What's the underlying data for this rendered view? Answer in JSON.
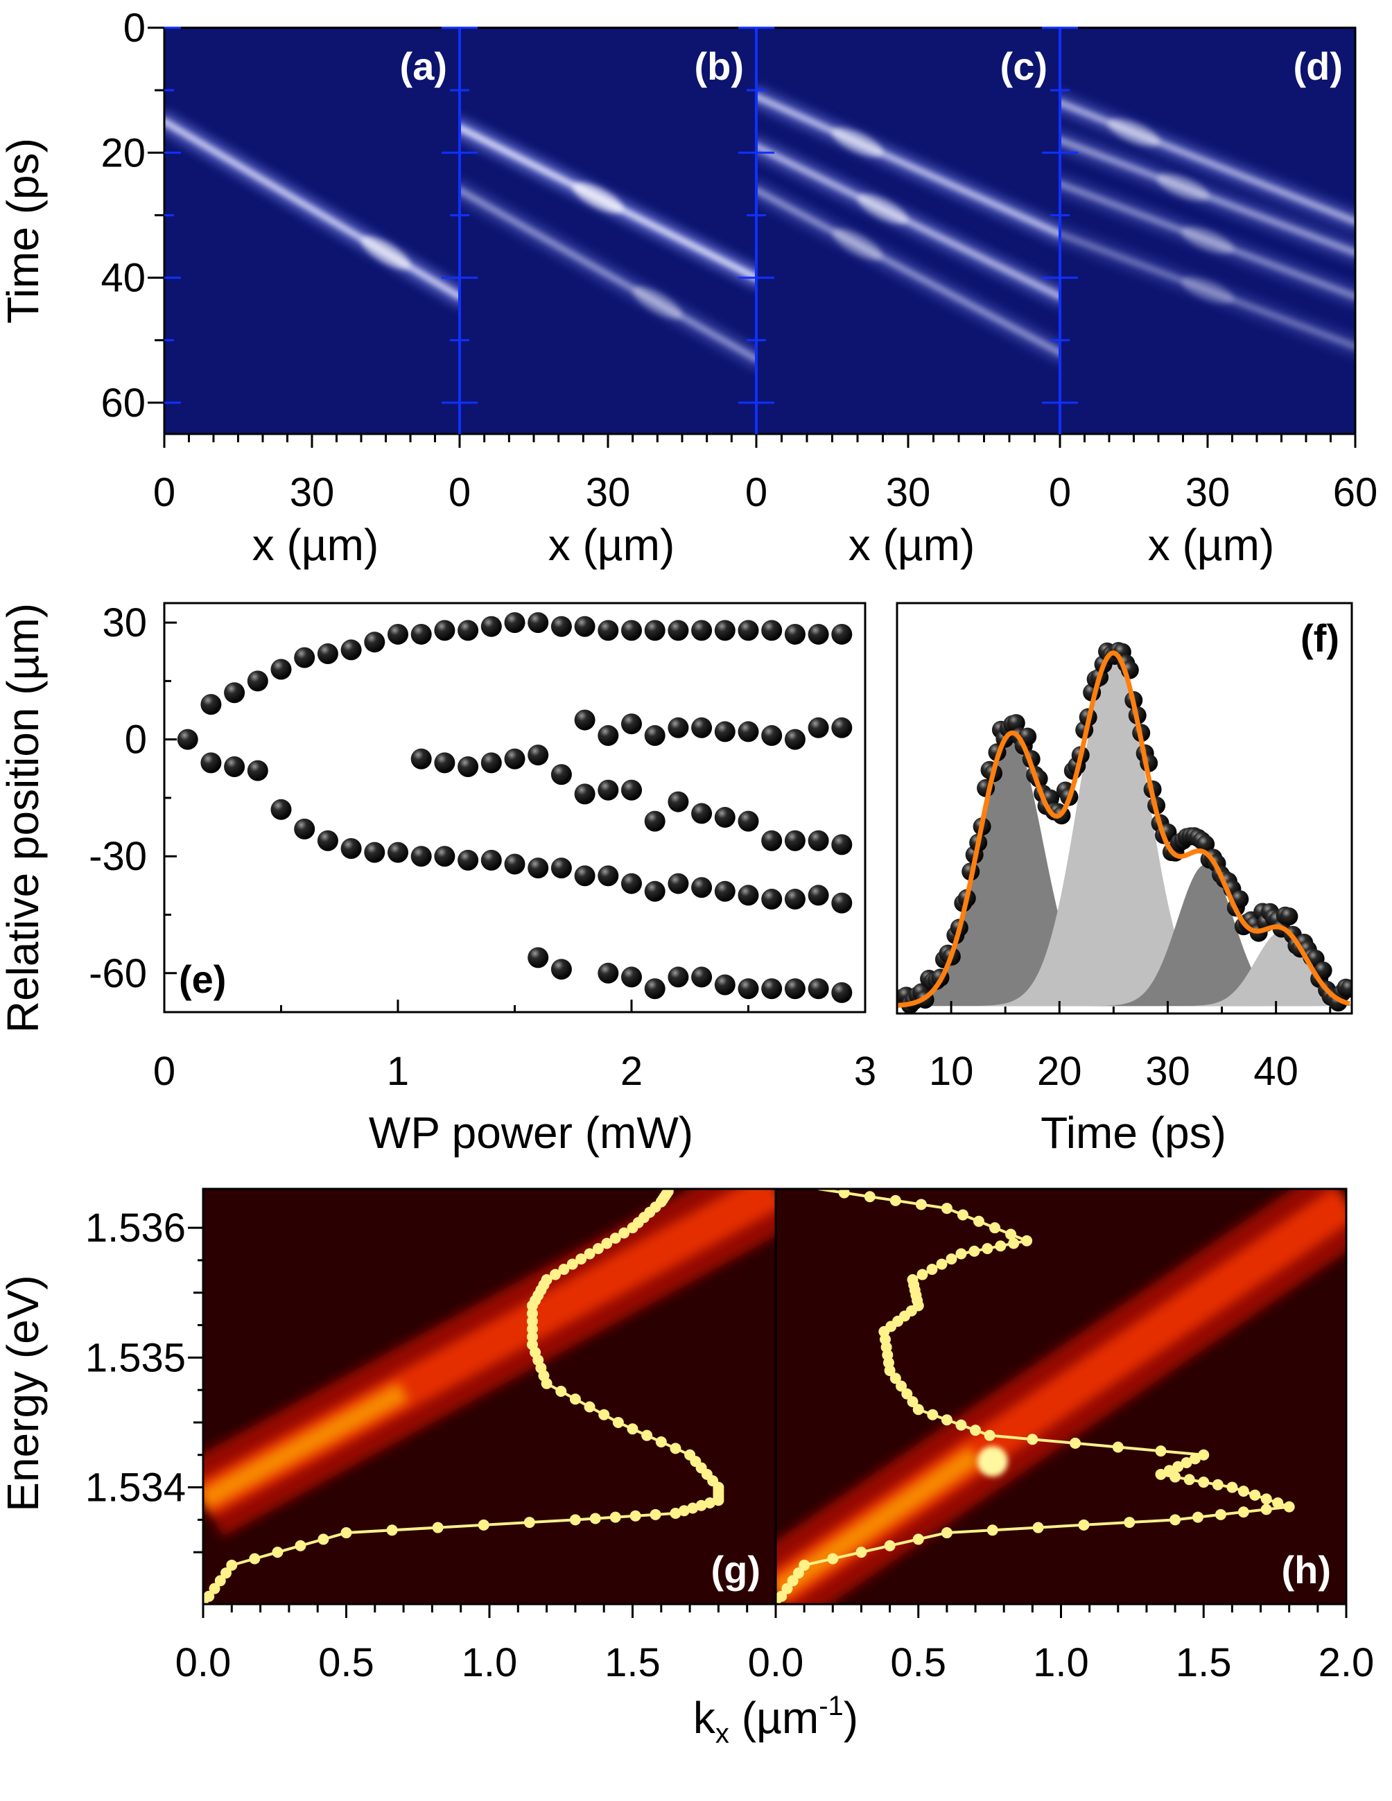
{
  "chart_data": [
    {
      "id": "panels_a_to_d",
      "type": "heatmap",
      "colormap": "blue-white",
      "panels": [
        {
          "label": "(a)",
          "x_range": [
            0,
            60
          ],
          "xticks": [
            "0",
            "30"
          ],
          "xlabel": "x (µm)",
          "streaks": [
            {
              "t0": 15,
              "t1": 43,
              "peak_x": 45,
              "brightness": 0.9
            }
          ]
        },
        {
          "label": "(b)",
          "x_range": [
            0,
            60
          ],
          "xticks": [
            "0",
            "30"
          ],
          "xlabel": "x (µm)",
          "streaks": [
            {
              "t0": 16,
              "t1": 40,
              "peak_x": 28,
              "brightness": 1.0
            },
            {
              "t0": 26,
              "t1": 53,
              "peak_x": 40,
              "brightness": 0.55
            }
          ]
        },
        {
          "label": "(c)",
          "x_range": [
            0,
            60
          ],
          "xticks": [
            "0",
            "30"
          ],
          "xlabel": "x (µm)",
          "streaks": [
            {
              "t0": 11,
              "t1": 33,
              "peak_x": 20,
              "brightness": 0.8
            },
            {
              "t0": 19,
              "t1": 43,
              "peak_x": 25,
              "brightness": 0.75
            },
            {
              "t0": 26,
              "t1": 52,
              "peak_x": 20,
              "brightness": 0.55
            }
          ]
        },
        {
          "label": "(d)",
          "x_range": [
            0,
            60
          ],
          "xticks": [
            "0",
            "30",
            "60"
          ],
          "xlabel": "x (µm)",
          "streaks": [
            {
              "t0": 12,
              "t1": 31,
              "peak_x": 15,
              "brightness": 0.7
            },
            {
              "t0": 18,
              "t1": 36,
              "peak_x": 25,
              "brightness": 0.6
            },
            {
              "t0": 25,
              "t1": 43,
              "peak_x": 30,
              "brightness": 0.5
            },
            {
              "t0": 33,
              "t1": 51,
              "peak_x": 30,
              "brightness": 0.4
            }
          ]
        }
      ],
      "ylabel": "Time (ps)",
      "ylim": [
        0,
        65
      ],
      "yticks": [
        0,
        20,
        40,
        60
      ]
    },
    {
      "id": "panel_e",
      "type": "scatter",
      "label": "(e)",
      "xlabel": "WP power (mW)",
      "ylabel": "Relative position (µm)",
      "xlim": [
        0,
        3
      ],
      "ylim": [
        -70,
        35
      ],
      "xticks": [
        0,
        1,
        2,
        3
      ],
      "yticks": [
        30,
        0,
        -30,
        -60
      ],
      "points": [
        [
          0.1,
          0
        ],
        [
          0.2,
          9
        ],
        [
          0.3,
          12
        ],
        [
          0.4,
          15
        ],
        [
          0.5,
          18
        ],
        [
          0.6,
          21
        ],
        [
          0.7,
          22
        ],
        [
          0.8,
          23
        ],
        [
          0.9,
          25
        ],
        [
          1.0,
          27
        ],
        [
          1.1,
          27
        ],
        [
          1.2,
          28
        ],
        [
          1.3,
          28
        ],
        [
          1.4,
          29
        ],
        [
          1.5,
          30
        ],
        [
          1.6,
          30
        ],
        [
          1.7,
          29
        ],
        [
          1.8,
          29
        ],
        [
          1.9,
          28
        ],
        [
          2.0,
          28
        ],
        [
          2.1,
          28
        ],
        [
          2.2,
          28
        ],
        [
          2.3,
          28
        ],
        [
          2.4,
          28
        ],
        [
          2.5,
          28
        ],
        [
          2.6,
          28
        ],
        [
          2.7,
          27
        ],
        [
          2.8,
          27
        ],
        [
          2.9,
          27
        ],
        [
          0.2,
          -6
        ],
        [
          0.3,
          -7
        ],
        [
          0.4,
          -8
        ],
        [
          0.5,
          -18
        ],
        [
          0.6,
          -23
        ],
        [
          0.7,
          -26
        ],
        [
          0.8,
          -28
        ],
        [
          0.9,
          -29
        ],
        [
          1.0,
          -29
        ],
        [
          1.1,
          -30
        ],
        [
          1.2,
          -30
        ],
        [
          1.3,
          -31
        ],
        [
          1.4,
          -31
        ],
        [
          1.5,
          -32
        ],
        [
          1.6,
          -33
        ],
        [
          1.7,
          -33
        ],
        [
          1.8,
          -35
        ],
        [
          1.9,
          -35
        ],
        [
          2.0,
          -37
        ],
        [
          2.1,
          -39
        ],
        [
          2.2,
          -37
        ],
        [
          2.3,
          -38
        ],
        [
          2.4,
          -39
        ],
        [
          2.5,
          -40
        ],
        [
          2.6,
          -41
        ],
        [
          2.7,
          -41
        ],
        [
          2.8,
          -40
        ],
        [
          2.9,
          -42
        ],
        [
          1.1,
          -5
        ],
        [
          1.2,
          -6
        ],
        [
          1.3,
          -7
        ],
        [
          1.4,
          -6
        ],
        [
          1.5,
          -5
        ],
        [
          1.6,
          -4
        ],
        [
          1.7,
          -9
        ],
        [
          1.8,
          5
        ],
        [
          1.9,
          1
        ],
        [
          2.0,
          4
        ],
        [
          2.1,
          1
        ],
        [
          2.2,
          3
        ],
        [
          2.3,
          3
        ],
        [
          2.4,
          2
        ],
        [
          2.5,
          2
        ],
        [
          2.6,
          1
        ],
        [
          2.7,
          0
        ],
        [
          2.8,
          3
        ],
        [
          2.9,
          3
        ],
        [
          1.8,
          -14
        ],
        [
          1.9,
          -13
        ],
        [
          2.0,
          -13
        ],
        [
          2.1,
          -21
        ],
        [
          2.2,
          -16
        ],
        [
          2.3,
          -19
        ],
        [
          2.4,
          -20
        ],
        [
          2.5,
          -21
        ],
        [
          2.6,
          -26
        ],
        [
          2.7,
          -26
        ],
        [
          2.8,
          -26
        ],
        [
          2.9,
          -27
        ],
        [
          1.6,
          -56
        ],
        [
          1.7,
          -59
        ],
        [
          1.9,
          -60
        ],
        [
          2.0,
          -61
        ],
        [
          2.1,
          -64
        ],
        [
          2.2,
          -61
        ],
        [
          2.3,
          -61
        ],
        [
          2.4,
          -63
        ],
        [
          2.5,
          -64
        ],
        [
          2.6,
          -64
        ],
        [
          2.7,
          -64
        ],
        [
          2.8,
          -64
        ],
        [
          2.9,
          -65
        ]
      ]
    },
    {
      "id": "panel_f",
      "type": "line",
      "label": "(f)",
      "xlabel": "Time (ps)",
      "xlim": [
        5,
        47
      ],
      "ylim": [
        0,
        1.1
      ],
      "xticks": [
        10,
        20,
        30,
        40
      ],
      "data_points": "measured intensity trace shown as black dots",
      "fit": "sum of four Gaussian components (orange line)",
      "components": [
        {
          "center": 15.5,
          "amplitude": 0.72,
          "width": 3.0,
          "color": "#808080"
        },
        {
          "center": 25.0,
          "amplitude": 0.94,
          "width": 3.2,
          "color": "#c0c0c0"
        },
        {
          "center": 33.5,
          "amplitude": 0.38,
          "width": 2.6,
          "color": "#808080"
        },
        {
          "center": 40.5,
          "amplitude": 0.2,
          "width": 2.4,
          "color": "#c0c0c0"
        }
      ],
      "colors": {
        "fit": "#ff7f0e",
        "points": "#111111"
      }
    },
    {
      "id": "panels_g_h",
      "type": "heatmap",
      "colormap": "hot",
      "xlabel": "k",
      "xlabel_sub": "x",
      "xlabel_unit": " (µm",
      "xlabel_sup": "-1",
      "xlabel_close": ")",
      "ylabel": "Energy (eV)",
      "ylim": [
        1.5331,
        1.5363
      ],
      "yticks": [
        "1.536",
        "1.535",
        "1.534"
      ],
      "ytick_values": [
        1.536,
        1.535,
        1.534
      ],
      "panels": [
        {
          "label": "(g)",
          "xlim": [
            0,
            2.0
          ],
          "xticks": [
            "0.0",
            "0.5",
            "1.0",
            "1.5"
          ],
          "dispersion": {
            "k_start": 0.0,
            "E_start": 1.5339,
            "k_end": 2.0,
            "E_end": 1.5363
          },
          "spectrum_profile_k_vs_E": [
            [
              0.0,
              1.5331
            ],
            [
              0.1,
              1.5334
            ],
            [
              0.5,
              1.53365
            ],
            [
              1.3,
              1.53375
            ],
            [
              1.65,
              1.5338
            ],
            [
              1.8,
              1.5339
            ],
            [
              1.8,
              1.534
            ],
            [
              1.7,
              1.53425
            ],
            [
              1.45,
              1.5345
            ],
            [
              1.2,
              1.5348
            ],
            [
              1.15,
              1.5351
            ],
            [
              1.15,
              1.5354
            ],
            [
              1.2,
              1.5356
            ],
            [
              1.35,
              1.5358
            ],
            [
              1.5,
              1.536
            ],
            [
              1.6,
              1.5362
            ],
            [
              1.63,
              1.5363
            ]
          ]
        },
        {
          "label": "(h)",
          "xlim": [
            0,
            2.0
          ],
          "xticks": [
            "0.0",
            "0.5",
            "1.0",
            "1.5",
            "2.0"
          ],
          "dispersion": {
            "k_start": 0.0,
            "E_start": 1.5332,
            "k_end": 2.0,
            "E_end": 1.5362
          },
          "bright_spot": {
            "k": 0.76,
            "E": 1.5342
          },
          "spectrum_profile_k_vs_E": [
            [
              0.0,
              1.5331
            ],
            [
              0.1,
              1.5334
            ],
            [
              0.6,
              1.53365
            ],
            [
              1.4,
              1.53375
            ],
            [
              1.8,
              1.53385
            ],
            [
              1.6,
              1.534
            ],
            [
              1.35,
              1.5341
            ],
            [
              1.5,
              1.53425
            ],
            [
              0.75,
              1.5344
            ],
            [
              0.5,
              1.5346
            ],
            [
              0.4,
              1.5349
            ],
            [
              0.38,
              1.5352
            ],
            [
              0.5,
              1.5354
            ],
            [
              0.48,
              1.5356
            ],
            [
              0.65,
              1.5358
            ],
            [
              0.88,
              1.5359
            ],
            [
              0.6,
              1.53615
            ],
            [
              0.15,
              1.5363
            ]
          ]
        }
      ]
    }
  ]
}
